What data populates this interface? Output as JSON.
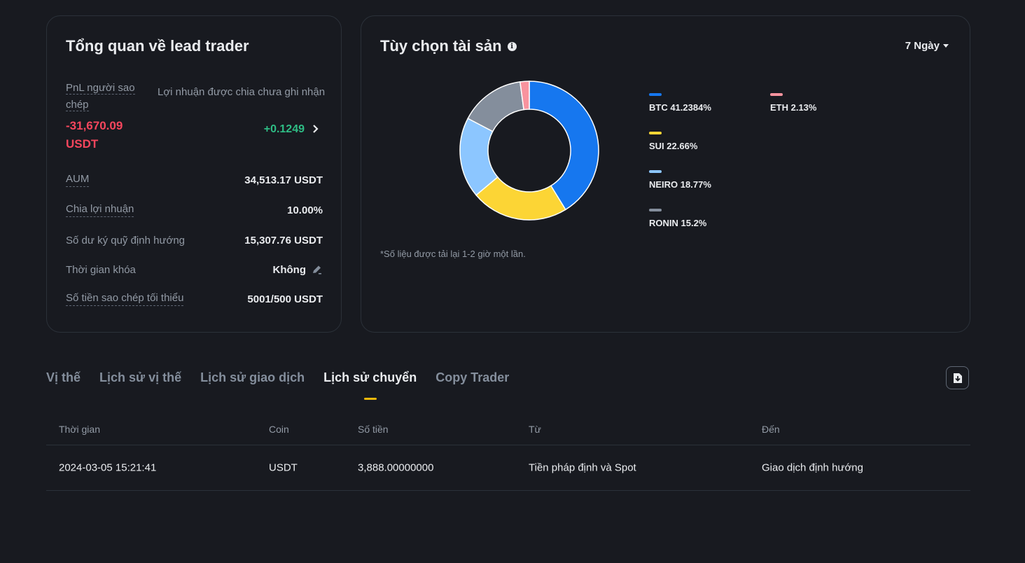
{
  "lead_overview": {
    "title": "Tổng quan về lead trader",
    "copier_pnl_label": "PnL người sao chép",
    "copier_pnl_value": "-31,670.09 USDT",
    "unrealized_profit_label": "Lợi nhuận được chia chưa ghi nhận",
    "unrealized_profit_value": "+0.1249",
    "rows": [
      {
        "label": "AUM",
        "value": "34,513.17 USDT"
      },
      {
        "label": "Chia lợi nhuận",
        "value": "10.00%"
      },
      {
        "label": "Số dư ký quỹ định hướng",
        "value": "15,307.76 USDT"
      },
      {
        "label": "Thời gian khóa",
        "value": "Không"
      },
      {
        "label": "Số tiền sao chép tối thiểu",
        "value": "5001/500 USDT"
      }
    ]
  },
  "asset_preference": {
    "title": "Tùy chọn tài sản",
    "period": "7 Ngày",
    "note": "*Số liệu được tải lại 1-2 giờ một lần.",
    "colors": {
      "BTC": "#1677ef",
      "SUI": "#fcd535",
      "NEIRO": "#8cc6ff",
      "RONIN": "#848e9c",
      "ETH": "#f8939e"
    }
  },
  "chart_data": {
    "type": "pie",
    "categories": [
      "BTC",
      "SUI",
      "NEIRO",
      "RONIN",
      "ETH"
    ],
    "values": [
      41.2384,
      22.66,
      18.77,
      15.2,
      2.13
    ],
    "labels": [
      "BTC 41.2384%",
      "SUI 22.66%",
      "NEIRO 18.77%",
      "RONIN 15.2%",
      "ETH 2.13%"
    ],
    "legend": "right"
  },
  "tabs": [
    "Vị thế",
    "Lịch sử vị thế",
    "Lịch sử giao dịch",
    "Lịch sử chuyển",
    "Copy Trader"
  ],
  "active_tab": "Lịch sử chuyển",
  "table": {
    "headers": [
      "Thời gian",
      "Coin",
      "Số tiền",
      "Từ",
      "Đến"
    ],
    "rows": [
      [
        "2024-03-05 15:21:41",
        "USDT",
        "3,888.00000000",
        "Tiền pháp định và Spot",
        "Giao dịch định hướng"
      ]
    ]
  }
}
